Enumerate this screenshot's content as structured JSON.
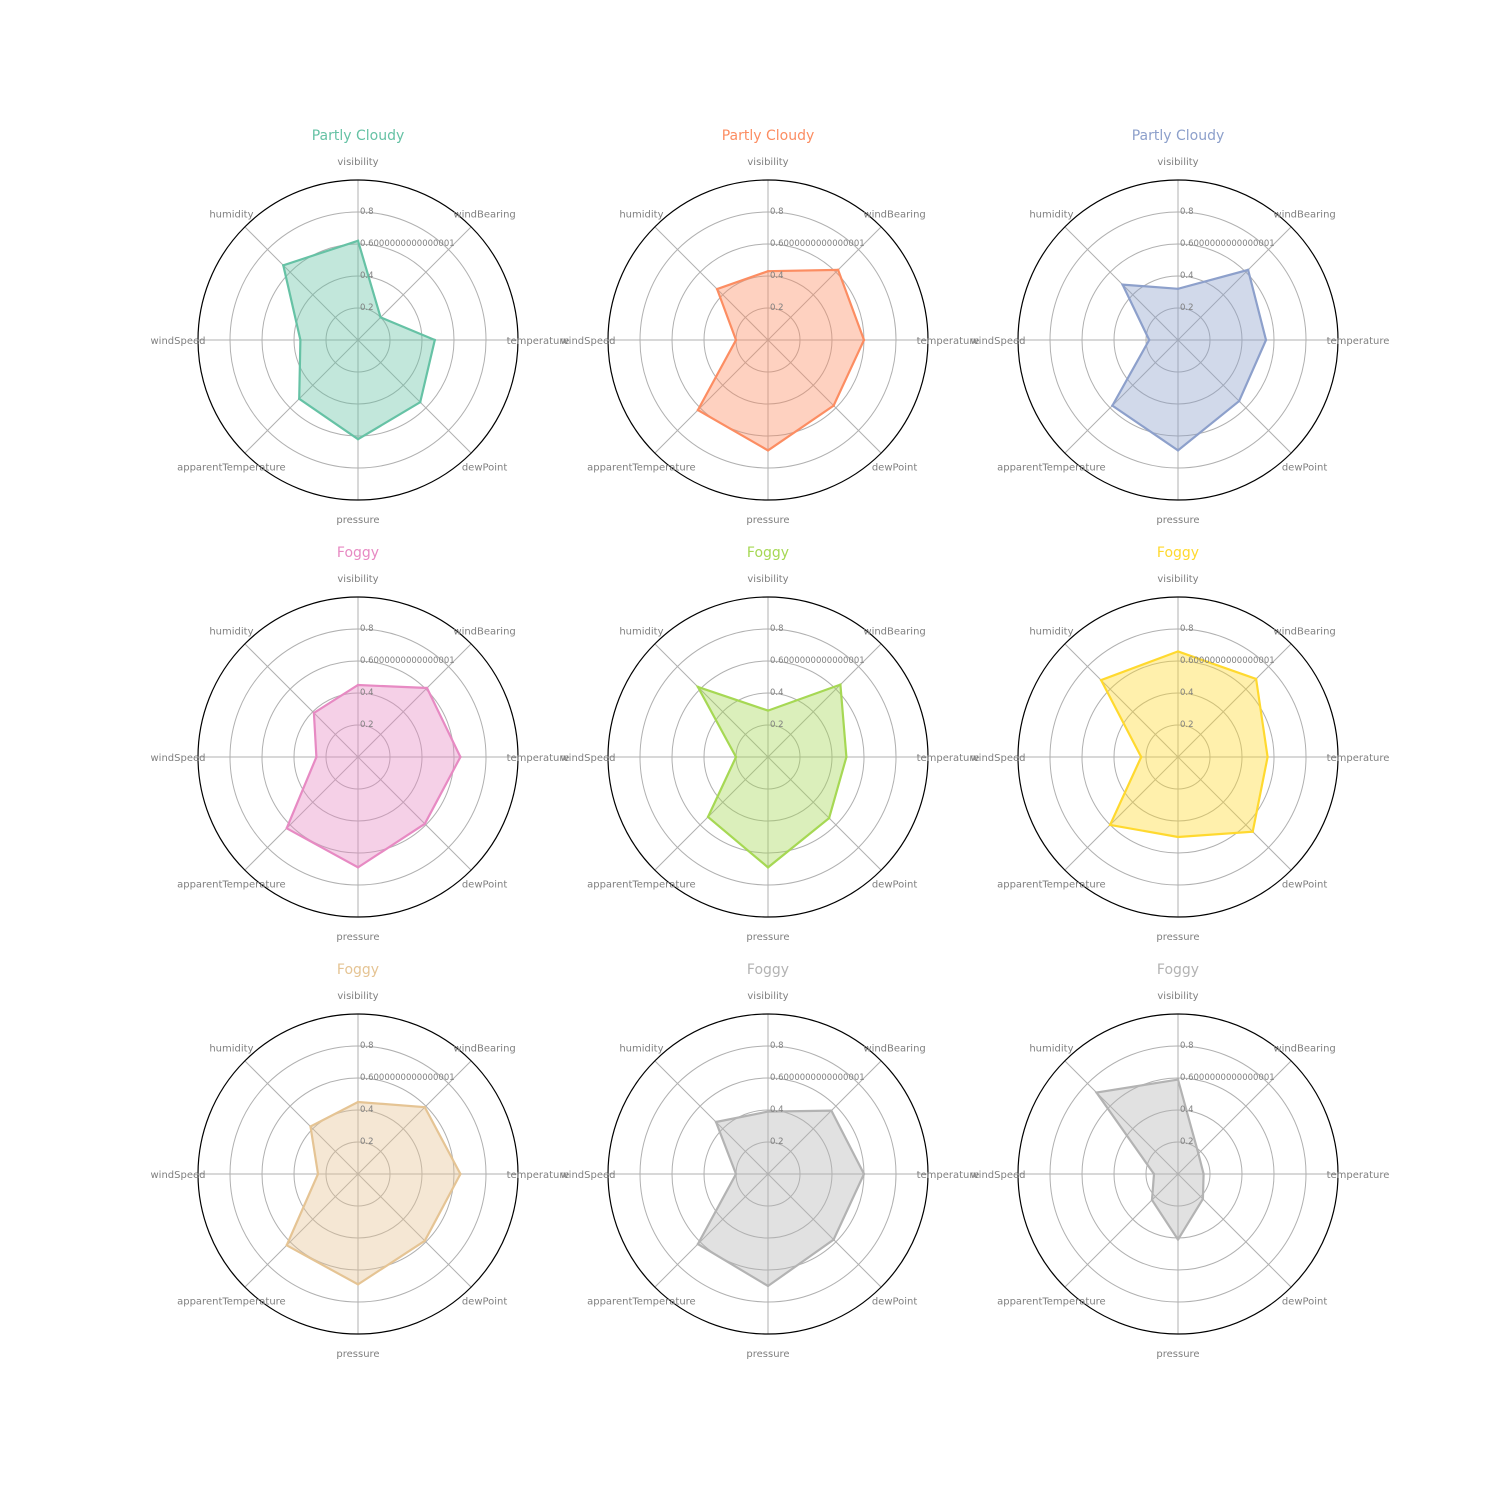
{
  "chart_data": {
    "type": "radar",
    "axes": [
      "temperature",
      "windBearing",
      "visibility",
      "humidity",
      "windSpeed",
      "apparentTemperature",
      "pressure",
      "dewPoint"
    ],
    "rlim": [
      0,
      1
    ],
    "rticks": [
      0.2,
      0.4,
      0.6000000000000001,
      0.8
    ],
    "rtick_labels": [
      "0.2",
      "0.4",
      "0.6000000000000001",
      "0.8"
    ],
    "grid": true,
    "panels": [
      {
        "title": "Partly Cloudy",
        "color": "#66c2a5",
        "values": [
          0.48,
          0.2,
          0.62,
          0.66,
          0.36,
          0.52,
          0.62,
          0.55
        ]
      },
      {
        "title": "Partly Cloudy",
        "color": "#fc8d62",
        "values": [
          0.6,
          0.62,
          0.43,
          0.45,
          0.2,
          0.62,
          0.69,
          0.58
        ]
      },
      {
        "title": "Partly Cloudy",
        "color": "#8da0cb",
        "values": [
          0.55,
          0.62,
          0.32,
          0.49,
          0.18,
          0.58,
          0.69,
          0.54
        ]
      },
      {
        "title": "Foggy",
        "color": "#e78ac3",
        "values": [
          0.64,
          0.61,
          0.45,
          0.39,
          0.26,
          0.63,
          0.69,
          0.59
        ]
      },
      {
        "title": "Foggy",
        "color": "#a6d854",
        "values": [
          0.49,
          0.64,
          0.29,
          0.62,
          0.2,
          0.53,
          0.69,
          0.54
        ]
      },
      {
        "title": "Foggy",
        "color": "#ffd92f",
        "values": [
          0.56,
          0.69,
          0.66,
          0.68,
          0.23,
          0.6,
          0.5,
          0.66
        ]
      },
      {
        "title": "Foggy",
        "color": "#e5c494",
        "values": [
          0.64,
          0.59,
          0.45,
          0.42,
          0.25,
          0.63,
          0.69,
          0.59
        ]
      },
      {
        "title": "Foggy",
        "color": "#b3b3b3",
        "values": [
          0.6,
          0.56,
          0.39,
          0.46,
          0.2,
          0.62,
          0.7,
          0.58
        ]
      },
      {
        "title": "Foggy",
        "color": "#b3b3b3",
        "values": [
          0.16,
          0.18,
          0.59,
          0.72,
          0.15,
          0.23,
          0.41,
          0.22
        ]
      }
    ]
  }
}
